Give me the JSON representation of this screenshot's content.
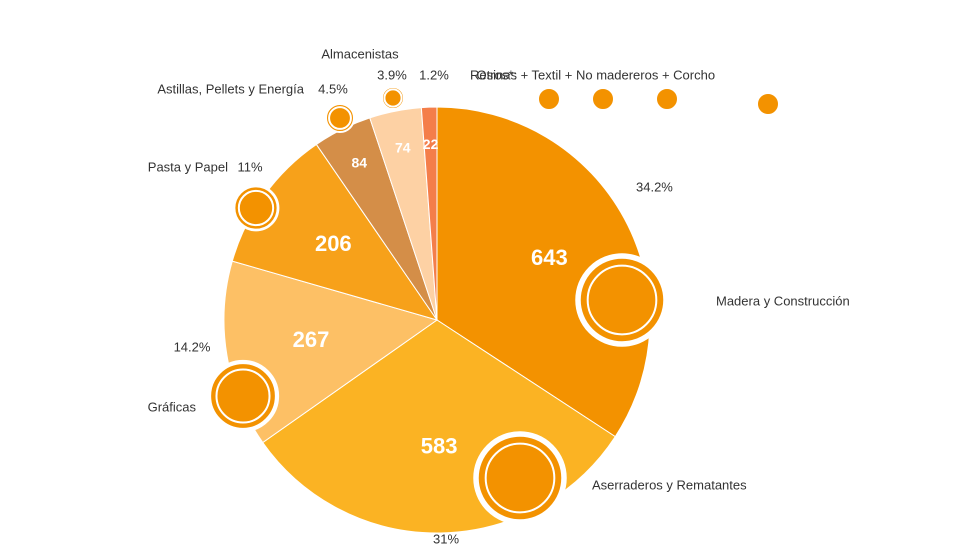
{
  "chart_data": {
    "type": "pie",
    "categories": [
      "Madera y Construcción",
      "Aserraderos y Rematantes",
      "Gráficas",
      "Pasta y Papel",
      "Astillas, Pellets y Energía",
      "Almacenistas",
      "Otros*:"
    ],
    "values": [
      643,
      583,
      267,
      206,
      84,
      74,
      22
    ],
    "shares": [
      {
        "value": 34.2,
        "label": "34.2%"
      },
      {
        "value": 31,
        "label": "31%"
      },
      {
        "value": 14.2,
        "label": "14.2%"
      },
      {
        "value": 11,
        "label": "11%"
      },
      {
        "value": 4.5,
        "label": "4.5%"
      },
      {
        "value": 3.9,
        "label": "3.9%"
      },
      {
        "value": 1.2,
        "label": "1.2%"
      }
    ],
    "colors": [
      "#f39200",
      "#fbb323",
      "#fdc065",
      "#f7a11a",
      "#d48e48",
      "#fdd1a4",
      "#f47e4a"
    ],
    "otros_detail": "Resinas + Textil + No madereros + Corcho"
  }
}
